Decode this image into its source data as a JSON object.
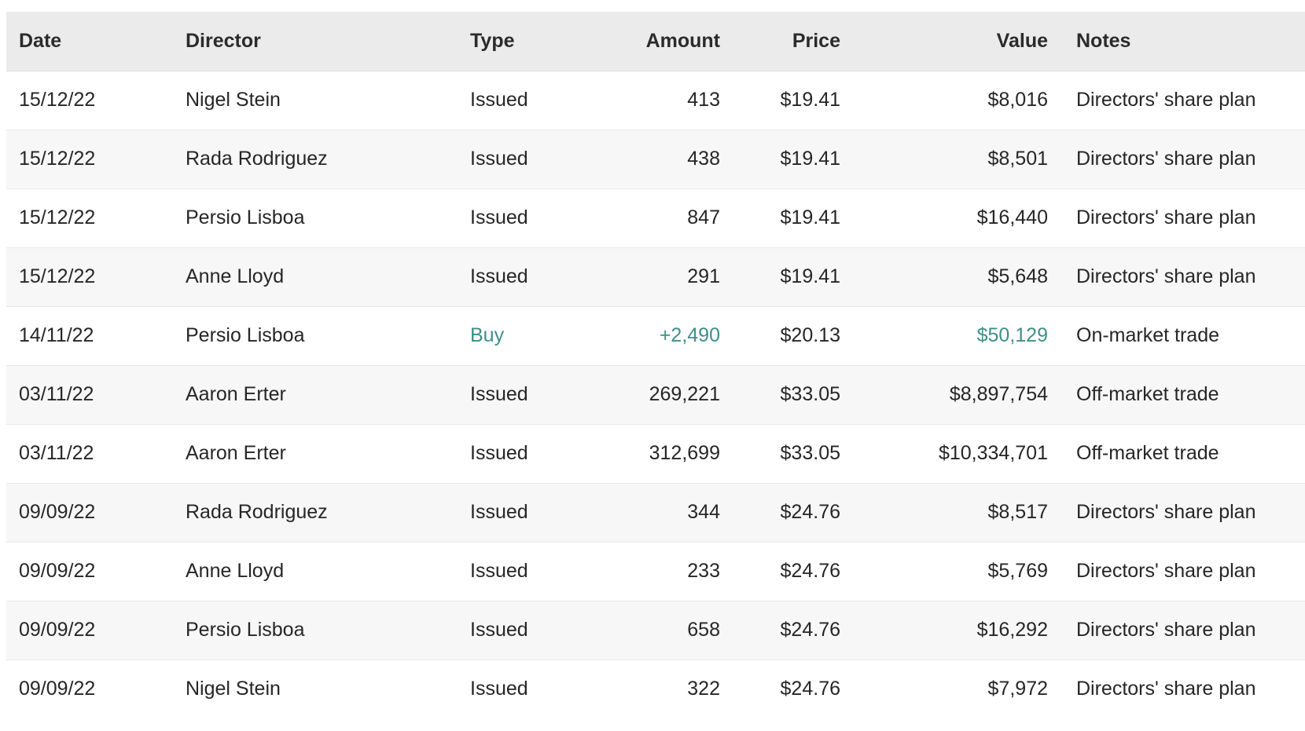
{
  "table": {
    "accent_color": "#3e8f89",
    "highlight_fields": [
      "type",
      "amount",
      "value"
    ],
    "columns": [
      {
        "key": "date",
        "label": "Date",
        "align": "left"
      },
      {
        "key": "director",
        "label": "Director",
        "align": "left"
      },
      {
        "key": "type",
        "label": "Type",
        "align": "left"
      },
      {
        "key": "amount",
        "label": "Amount",
        "align": "right"
      },
      {
        "key": "price",
        "label": "Price",
        "align": "right"
      },
      {
        "key": "value",
        "label": "Value",
        "align": "right"
      },
      {
        "key": "notes",
        "label": "Notes",
        "align": "left"
      }
    ],
    "rows": [
      {
        "date": "15/12/22",
        "director": "Nigel Stein",
        "type": "Issued",
        "amount": "413",
        "price": "$19.41",
        "value": "$8,016",
        "notes": "Directors' share plan",
        "highlight": false
      },
      {
        "date": "15/12/22",
        "director": "Rada Rodriguez",
        "type": "Issued",
        "amount": "438",
        "price": "$19.41",
        "value": "$8,501",
        "notes": "Directors' share plan",
        "highlight": false
      },
      {
        "date": "15/12/22",
        "director": "Persio Lisboa",
        "type": "Issued",
        "amount": "847",
        "price": "$19.41",
        "value": "$16,440",
        "notes": "Directors' share plan",
        "highlight": false
      },
      {
        "date": "15/12/22",
        "director": "Anne Lloyd",
        "type": "Issued",
        "amount": "291",
        "price": "$19.41",
        "value": "$5,648",
        "notes": "Directors' share plan",
        "highlight": false
      },
      {
        "date": "14/11/22",
        "director": "Persio Lisboa",
        "type": "Buy",
        "amount": "+2,490",
        "price": "$20.13",
        "value": "$50,129",
        "notes": "On-market trade",
        "highlight": true
      },
      {
        "date": "03/11/22",
        "director": "Aaron Erter",
        "type": "Issued",
        "amount": "269,221",
        "price": "$33.05",
        "value": "$8,897,754",
        "notes": "Off-market trade",
        "highlight": false
      },
      {
        "date": "03/11/22",
        "director": "Aaron Erter",
        "type": "Issued",
        "amount": "312,699",
        "price": "$33.05",
        "value": "$10,334,701",
        "notes": "Off-market trade",
        "highlight": false
      },
      {
        "date": "09/09/22",
        "director": "Rada Rodriguez",
        "type": "Issued",
        "amount": "344",
        "price": "$24.76",
        "value": "$8,517",
        "notes": "Directors' share plan",
        "highlight": false
      },
      {
        "date": "09/09/22",
        "director": "Anne Lloyd",
        "type": "Issued",
        "amount": "233",
        "price": "$24.76",
        "value": "$5,769",
        "notes": "Directors' share plan",
        "highlight": false
      },
      {
        "date": "09/09/22",
        "director": "Persio Lisboa",
        "type": "Issued",
        "amount": "658",
        "price": "$24.76",
        "value": "$16,292",
        "notes": "Directors' share plan",
        "highlight": false
      },
      {
        "date": "09/09/22",
        "director": "Nigel Stein",
        "type": "Issued",
        "amount": "322",
        "price": "$24.76",
        "value": "$7,972",
        "notes": "Directors' share plan",
        "highlight": false
      }
    ]
  }
}
